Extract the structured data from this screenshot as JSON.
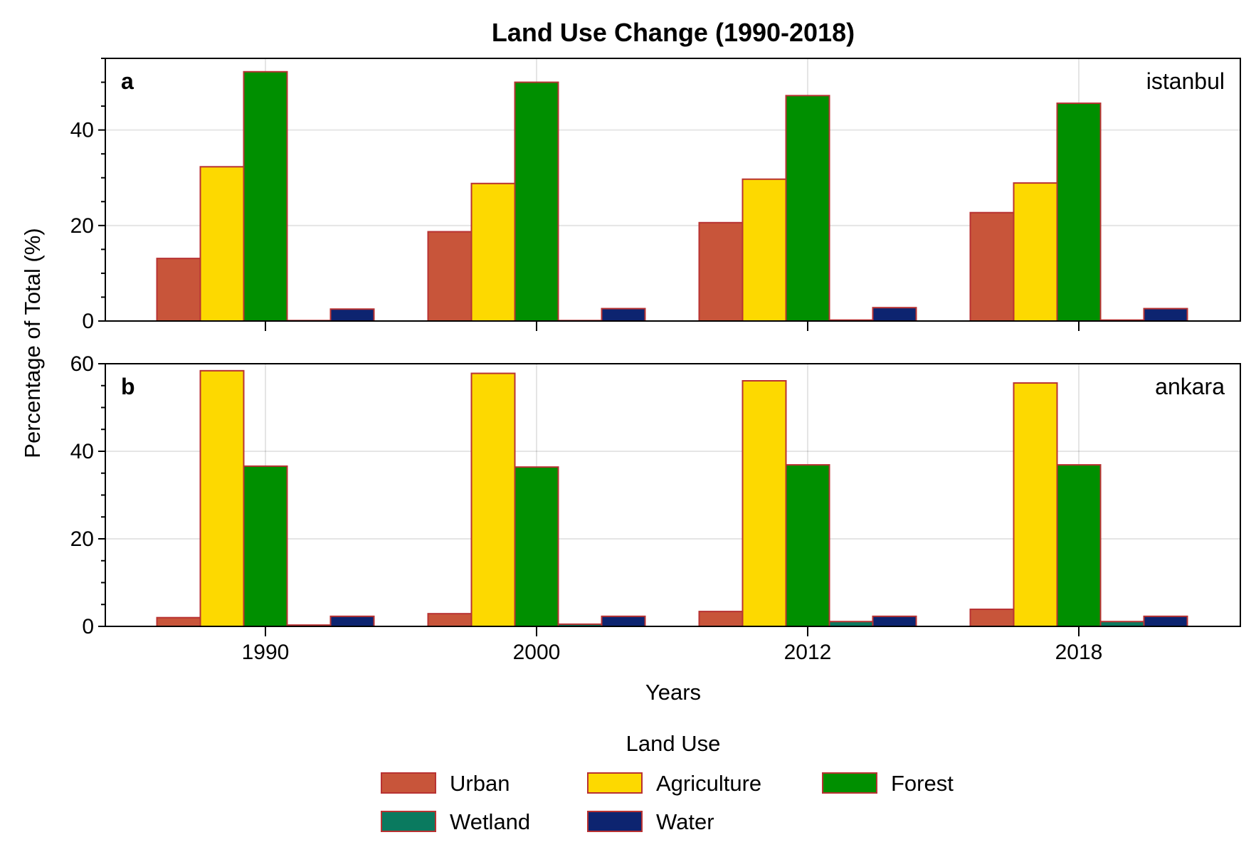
{
  "chart_data": {
    "type": "bar",
    "title": "Land Use Change (1990-2018)",
    "xlabel": "Years",
    "ylabel": "Percentage of Total (%)",
    "categories": [
      "1990",
      "2000",
      "2012",
      "2018"
    ],
    "legend": {
      "title": "Land Use",
      "placement": "bottom-center",
      "entries": [
        "Urban",
        "Agriculture",
        "Forest",
        "Wetland",
        "Water"
      ]
    },
    "colors": {
      "Urban": "#c8553a",
      "Agriculture": "#fdd900",
      "Forest": "#008f00",
      "Wetland": "#0a7a5f",
      "Water": "#0d2470",
      "edge": "#b83232"
    },
    "grid": true,
    "panels": [
      {
        "letter": "a",
        "name": "istanbul",
        "ylim": [
          0,
          55
        ],
        "yticks": [
          0,
          20,
          40
        ],
        "series": [
          {
            "name": "Urban",
            "values": [
              13.1,
              18.7,
              20.6,
              22.7
            ]
          },
          {
            "name": "Agriculture",
            "values": [
              32.3,
              28.8,
              29.7,
              28.9
            ]
          },
          {
            "name": "Forest",
            "values": [
              52.2,
              50.0,
              47.2,
              45.6
            ]
          },
          {
            "name": "Wetland",
            "values": [
              0.1,
              0.1,
              0.2,
              0.2
            ]
          },
          {
            "name": "Water",
            "values": [
              2.5,
              2.6,
              2.8,
              2.6
            ]
          }
        ]
      },
      {
        "letter": "b",
        "name": "ankara",
        "ylim": [
          0,
          60
        ],
        "yticks": [
          0,
          20,
          40,
          60
        ],
        "series": [
          {
            "name": "Urban",
            "values": [
              2.0,
              2.9,
              3.4,
              3.9
            ]
          },
          {
            "name": "Agriculture",
            "values": [
              58.4,
              57.8,
              56.1,
              55.6
            ]
          },
          {
            "name": "Forest",
            "values": [
              36.6,
              36.4,
              36.9,
              36.9
            ]
          },
          {
            "name": "Wetland",
            "values": [
              0.3,
              0.5,
              1.1,
              1.1
            ]
          },
          {
            "name": "Water",
            "values": [
              2.3,
              2.3,
              2.3,
              2.3
            ]
          }
        ]
      }
    ]
  }
}
